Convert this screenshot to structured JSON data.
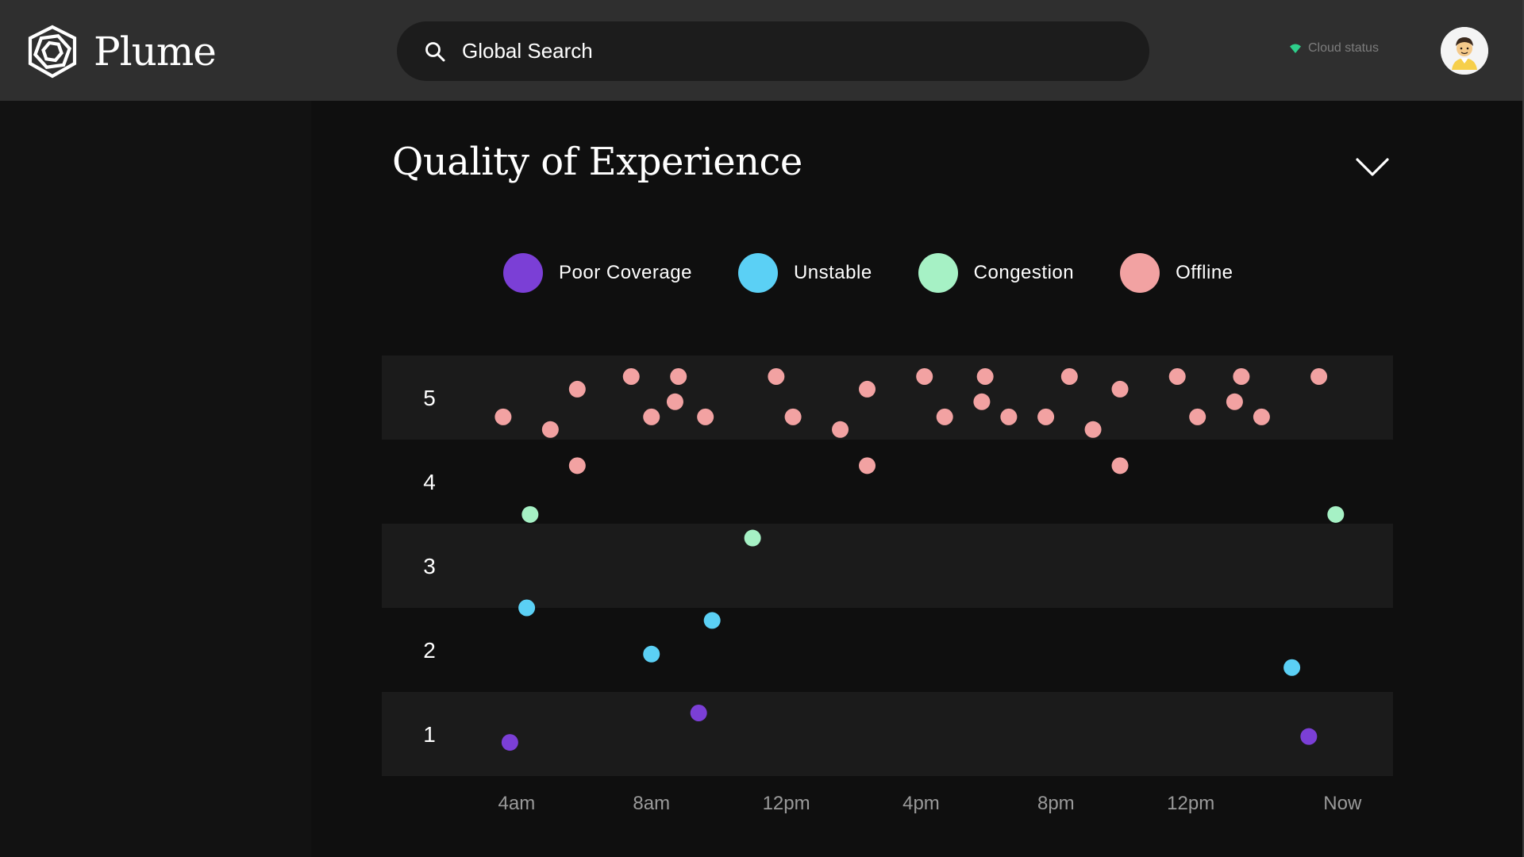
{
  "header": {
    "logo_text": "Plume",
    "search_placeholder": "Global Search",
    "cloud_status": "Cloud status"
  },
  "panel": {
    "title": "Quality of Experience"
  },
  "legend": [
    {
      "label": "Poor Coverage",
      "color": "#7b3fd6"
    },
    {
      "label": "Unstable",
      "color": "#5bd0f5"
    },
    {
      "label": "Congestion",
      "color": "#a6f1c5"
    },
    {
      "label": "Offline",
      "color": "#f2a2a2"
    }
  ],
  "chart_data": {
    "type": "scatter",
    "title": "",
    "xlabel": "",
    "ylabel": "",
    "y_ticks": [
      1,
      2,
      3,
      4,
      5
    ],
    "ylim": [
      0.5,
      5.5
    ],
    "x_ticks": [
      "4am",
      "8am",
      "12pm",
      "4pm",
      "8pm",
      "12pm",
      "Now"
    ],
    "x_units": "hours",
    "x_tick_hours": [
      4,
      8,
      12,
      16,
      20,
      24,
      28.5
    ],
    "xlim": [
      0,
      30
    ],
    "grid": "alternating-bands",
    "legend_position": "top-center",
    "series": [
      {
        "name": "Poor Coverage",
        "color": "#7b3fd6",
        "points": [
          [
            3.8,
            0.9
          ],
          [
            9.4,
            1.25
          ],
          [
            27.5,
            0.97
          ]
        ]
      },
      {
        "name": "Unstable",
        "color": "#5bd0f5",
        "points": [
          [
            4.3,
            2.5
          ],
          [
            8.0,
            1.95
          ],
          [
            9.8,
            2.35
          ],
          [
            27.0,
            1.79
          ]
        ]
      },
      {
        "name": "Congestion",
        "color": "#a6f1c5",
        "points": [
          [
            4.4,
            3.61
          ],
          [
            11.0,
            3.33
          ],
          [
            28.3,
            3.61
          ]
        ]
      },
      {
        "name": "Offline",
        "color": "#f2a2a2",
        "points": [
          [
            3.6,
            4.77
          ],
          [
            5.0,
            4.62
          ],
          [
            5.8,
            5.1
          ],
          [
            5.8,
            4.19
          ],
          [
            7.4,
            5.25
          ],
          [
            8.0,
            4.77
          ],
          [
            8.7,
            4.95
          ],
          [
            8.8,
            5.25
          ],
          [
            9.6,
            4.77
          ],
          [
            11.7,
            5.25
          ],
          [
            12.2,
            4.77
          ],
          [
            13.6,
            4.62
          ],
          [
            14.4,
            5.1
          ],
          [
            14.4,
            4.19
          ],
          [
            16.1,
            5.25
          ],
          [
            16.7,
            4.77
          ],
          [
            17.8,
            4.95
          ],
          [
            17.9,
            5.25
          ],
          [
            18.6,
            4.77
          ],
          [
            19.7,
            4.77
          ],
          [
            20.4,
            5.25
          ],
          [
            21.1,
            4.62
          ],
          [
            21.9,
            5.1
          ],
          [
            21.9,
            4.19
          ],
          [
            23.6,
            5.25
          ],
          [
            24.2,
            4.77
          ],
          [
            25.3,
            4.95
          ],
          [
            25.5,
            5.25
          ],
          [
            26.1,
            4.77
          ],
          [
            27.8,
            5.25
          ]
        ]
      }
    ]
  }
}
